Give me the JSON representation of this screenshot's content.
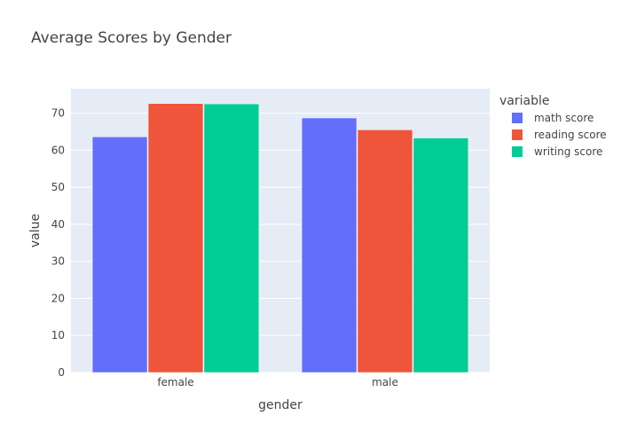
{
  "colors": {
    "plot_background": "#e5ecf6",
    "grid": "#ffffff",
    "text": "#444444"
  },
  "chart_data": {
    "type": "bar",
    "barmode": "group",
    "title": "Average Scores by Gender",
    "xlabel": "gender",
    "ylabel": "value",
    "categories": [
      "female",
      "male"
    ],
    "ylim": [
      0,
      76.6
    ],
    "yticks": [
      0,
      10,
      20,
      30,
      40,
      50,
      60,
      70
    ],
    "grid": true,
    "legend": {
      "title": "variable",
      "position": "right"
    },
    "series": [
      {
        "name": "math score",
        "color": "#636efa",
        "values": [
          63.6,
          68.7
        ]
      },
      {
        "name": "reading score",
        "color": "#ef553b",
        "values": [
          72.6,
          65.5
        ]
      },
      {
        "name": "writing score",
        "color": "#00cc96",
        "values": [
          72.5,
          63.3
        ]
      }
    ]
  }
}
